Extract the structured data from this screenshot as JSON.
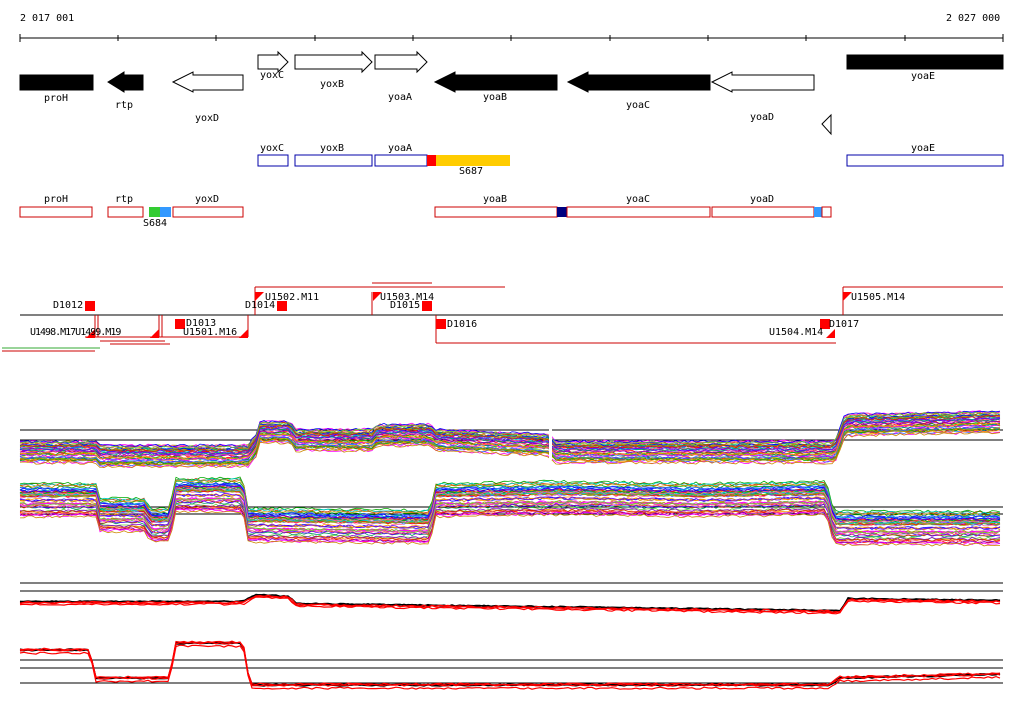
{
  "coords": {
    "start": "2 017 001",
    "end": "2 027 000"
  },
  "genes": [
    {
      "name": "proH",
      "strand": "-",
      "filled": true
    },
    {
      "name": "rtp",
      "strand": "-",
      "filled": true
    },
    {
      "name": "yoxD",
      "strand": "-",
      "filled": false
    },
    {
      "name": "yoxC",
      "strand": "+",
      "filled": false
    },
    {
      "name": "yoxB",
      "strand": "+",
      "filled": false
    },
    {
      "name": "yoaA",
      "strand": "+",
      "filled": false
    },
    {
      "name": "yoaB",
      "strand": "-",
      "filled": true
    },
    {
      "name": "yoaC",
      "strand": "-",
      "filled": true
    },
    {
      "name": "yoaD",
      "strand": "-",
      "filled": false
    },
    {
      "name": "yoaE",
      "strand": "+",
      "filled": true
    }
  ],
  "transcripts_plus": [
    {
      "name": "yoxC"
    },
    {
      "name": "yoxB"
    },
    {
      "name": "yoaA"
    },
    {
      "name": "yoaE"
    }
  ],
  "transcripts_minus": [
    {
      "name": "proH"
    },
    {
      "name": "rtp"
    },
    {
      "name": "yoxD"
    },
    {
      "name": "yoaB"
    },
    {
      "name": "yoaC"
    },
    {
      "name": "yoaD"
    }
  ],
  "segments": {
    "s687": "S687",
    "s684": "S684"
  },
  "promoters": {
    "d1012": "D1012",
    "d1014": "D1014",
    "d1015": "D1015",
    "d1016": "D1016",
    "d1013": "D1013",
    "d1017": "D1017",
    "u1502": "U1502.M11",
    "u1503": "U1503.M14",
    "u1505": "U1505.M14",
    "u1501": "U1501.M16",
    "u1504": "U1504.M14",
    "overlap_left": "U1498.M17U1499.M19"
  },
  "colors": {
    "gene_fill": "#000000",
    "transcript_plus": "#0000aa",
    "transcript_minus": "#cc0000",
    "segment_orange": "#ffcc00",
    "segment_red": "#ff0000",
    "segment_green": "#33cc33",
    "segment_lightblue": "#3399ff",
    "segment_navy": "#000080"
  }
}
